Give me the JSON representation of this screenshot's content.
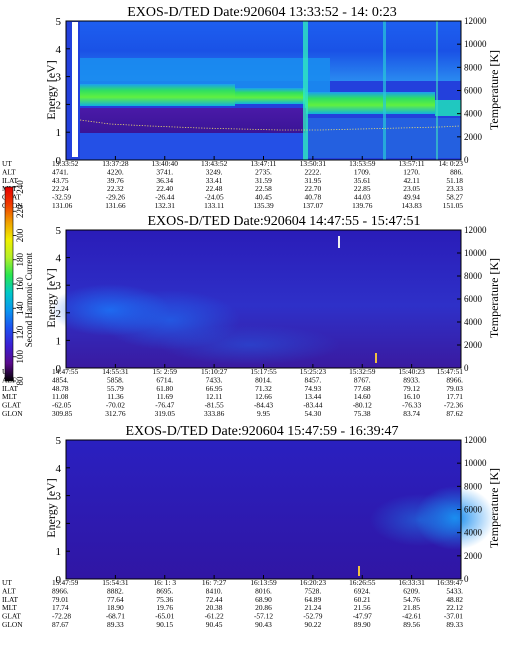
{
  "chart_data": [
    {
      "type": "heatmap",
      "title": "EXOS-D/TED   Date:920604  13:33:52 - 14: 0:23",
      "ylabel": "Energy [eV]",
      "y2label": "Temperature [K]",
      "ylim": [
        0,
        5
      ],
      "y2lim": [
        0,
        12000
      ],
      "yticks": [
        "0",
        "1",
        "2",
        "3",
        "4",
        "5"
      ],
      "y2ticks": [
        "0",
        "2000",
        "4000",
        "6000",
        "8000",
        "10000",
        "12000"
      ],
      "orbit_labels": [
        "UT",
        "ALT",
        "ILAT",
        "MLT",
        "GLAT",
        "GLON"
      ],
      "orbit": [
        [
          "13:33:52",
          "4741.",
          "43.75",
          "22.24",
          "-32.59",
          "131.06"
        ],
        [
          "13:37:28",
          "4220.",
          "39.76",
          "22.32",
          "-29.26",
          "131.66"
        ],
        [
          "13:40:40",
          "3741.",
          "36.34",
          "22.40",
          "-26.44",
          "132.31"
        ],
        [
          "13:43:52",
          "3249.",
          "33.41",
          "22.48",
          "-24.05",
          "133.11"
        ],
        [
          "13:47:11",
          "2735.",
          "31.59",
          "22.58",
          "40.45",
          "135.39"
        ],
        [
          "13:50:31",
          "2222.",
          "31.95",
          "22.70",
          "40.78",
          "137.07"
        ],
        [
          "13:53:59",
          "1709.",
          "35.61",
          "22.85",
          "44.03",
          "139.76"
        ],
        [
          "13:57:11",
          "1270.",
          "42.11",
          "23.05",
          "49.94",
          "143.83"
        ],
        [
          "14: 0:23",
          "886.",
          "51.18",
          "23.33",
          "58.27",
          "151.05"
        ]
      ]
    },
    {
      "type": "heatmap",
      "title": "EXOS-D/TED   Date:920604  14:47:55 - 15:47:51",
      "ylabel": "Energy [eV]",
      "y2label": "Temperature [K]",
      "ylim": [
        0,
        5
      ],
      "y2lim": [
        0,
        12000
      ],
      "yticks": [
        "0",
        "1",
        "2",
        "3",
        "4",
        "5"
      ],
      "y2ticks": [
        "0",
        "2000",
        "4000",
        "6000",
        "8000",
        "10000",
        "12000"
      ],
      "orbit_labels": [
        "UT",
        "ALT",
        "ILAT",
        "MLT",
        "GLAT",
        "GLON"
      ],
      "orbit": [
        [
          "14:47:55",
          "4854.",
          "48.78",
          "11.08",
          "-62.05",
          "309.85"
        ],
        [
          "14:55:31",
          "5858.",
          "55.79",
          "11.36",
          "-70.02",
          "312.76"
        ],
        [
          "15: 2:59",
          "6714.",
          "61.80",
          "11.69",
          "-76.47",
          "319.05"
        ],
        [
          "15:10:27",
          "7433.",
          "66.95",
          "12.11",
          "-81.55",
          "333.86"
        ],
        [
          "15:17:55",
          "8014.",
          "71.32",
          "12.66",
          "-84.43",
          "9.95"
        ],
        [
          "15:25:23",
          "8457.",
          "74.93",
          "13.44",
          "-83.44",
          "54.30"
        ],
        [
          "15:32:59",
          "8767.",
          "77.68",
          "14.60",
          "-80.12",
          "75.38"
        ],
        [
          "15:40:23",
          "8933.",
          "79.12",
          "16.10",
          "-76.33",
          "83.74"
        ],
        [
          "15:47:51",
          "8966.",
          "79.03",
          "17.71",
          "-72.36",
          "87.62"
        ]
      ]
    },
    {
      "type": "heatmap",
      "title": "EXOS-D/TED   Date:920604  15:47:59 - 16:39:47",
      "ylabel": "Energy [eV]",
      "y2label": "Temperature [K]",
      "ylim": [
        0,
        5
      ],
      "y2lim": [
        0,
        12000
      ],
      "yticks": [
        "0",
        "1",
        "2",
        "3",
        "4",
        "5"
      ],
      "y2ticks": [
        "0",
        "2000",
        "4000",
        "6000",
        "8000",
        "10000",
        "12000"
      ],
      "orbit_labels": [
        "UT",
        "ALT",
        "ILAT",
        "MLT",
        "GLAT",
        "GLON"
      ],
      "orbit": [
        [
          "15:47:59",
          "8966.",
          "79.01",
          "17.74",
          "-72.28",
          "87.67"
        ],
        [
          "15:54:31",
          "8882.",
          "77.64",
          "18.90",
          "-68.71",
          "89.33"
        ],
        [
          "16: 1: 3",
          "8695.",
          "75.36",
          "19.76",
          "-65.01",
          "90.15"
        ],
        [
          "16: 7:27",
          "8410.",
          "72.44",
          "20.38",
          "-61.22",
          "90.45"
        ],
        [
          "16:13:59",
          "8016.",
          "68.90",
          "20.86",
          "-57.12",
          "90.43"
        ],
        [
          "16:20:23",
          "7528.",
          "64.89",
          "21.24",
          "-52.79",
          "90.22"
        ],
        [
          "16:26:55",
          "6924.",
          "60.21",
          "21.56",
          "-47.97",
          "89.90"
        ],
        [
          "16:33:31",
          "6209.",
          "54.76",
          "21.85",
          "-42.61",
          "89.56"
        ],
        [
          "16:39:47",
          "5433.",
          "48.82",
          "22.12",
          "-37.01",
          "89.33"
        ]
      ]
    }
  ],
  "colorbar": {
    "label": "Second Harmonic Current",
    "ticks": [
      "80",
      "100",
      "120",
      "140",
      "160",
      "180",
      "200",
      "220",
      "240"
    ],
    "range": [
      80,
      240
    ],
    "colors": [
      "#000000",
      "#5a0a8c",
      "#3c1ed2",
      "#1e50f0",
      "#0a96f0",
      "#00c8c8",
      "#28e650",
      "#b4f028",
      "#f0f000",
      "#f0a000",
      "#f03c00",
      "#e60000"
    ]
  }
}
